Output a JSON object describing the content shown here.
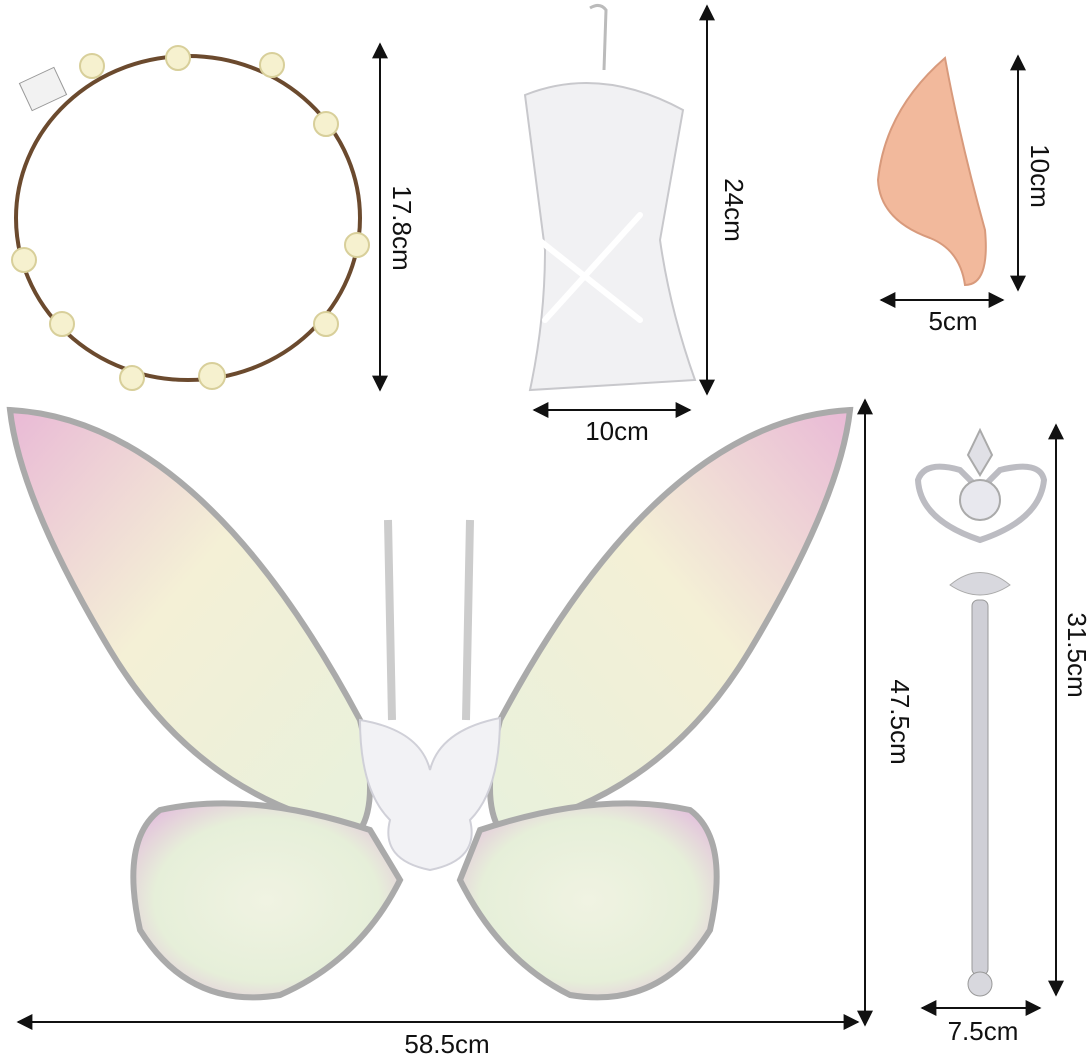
{
  "crown": {
    "height": "17.8cm"
  },
  "glove": {
    "height": "24cm",
    "width": "10cm"
  },
  "ear": {
    "height": "10cm",
    "width": "5cm"
  },
  "wings": {
    "height": "47.5cm",
    "width": "58.5cm"
  },
  "wand": {
    "height": "31.5cm",
    "width": "7.5cm"
  }
}
